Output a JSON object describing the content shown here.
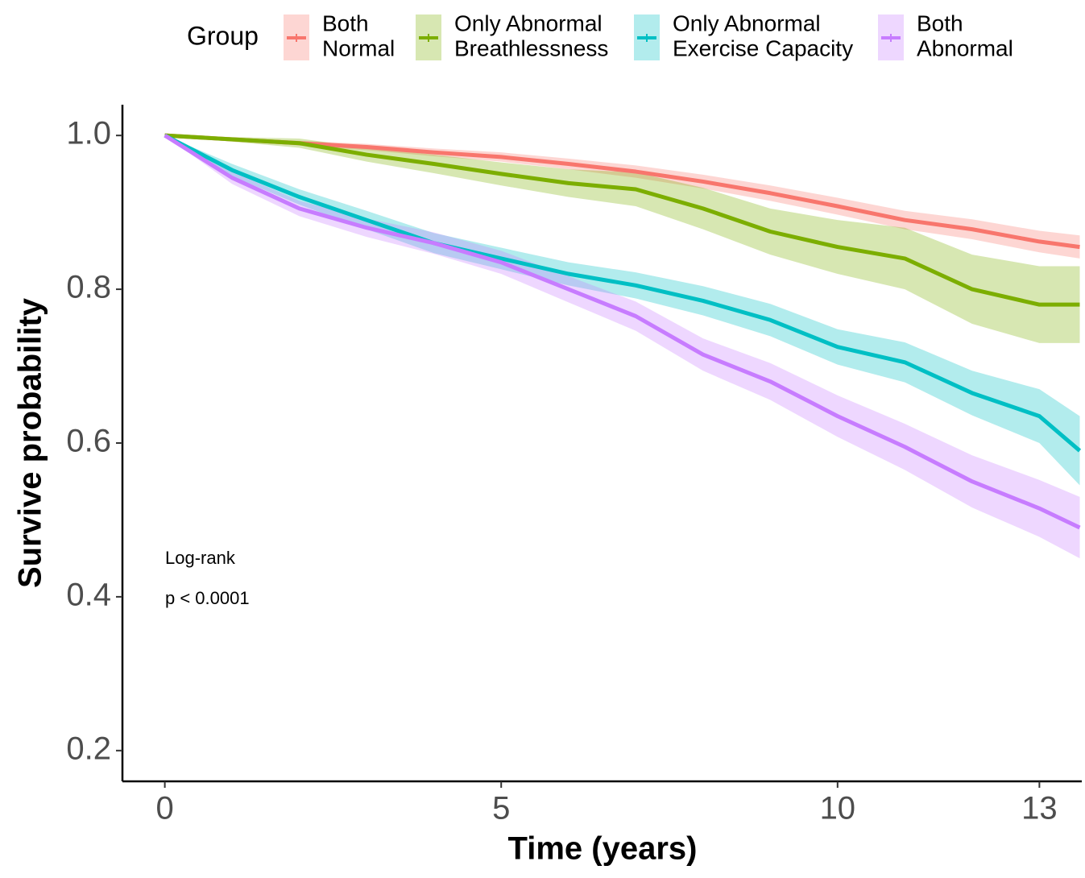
{
  "chart_data": {
    "type": "line",
    "legend_title": "Group",
    "x_label": "Time (years)",
    "y_label": "Survive probability",
    "annotations": [
      "Log-rank",
      "p < 0.0001"
    ],
    "x": [
      0,
      1,
      2,
      3,
      4,
      5,
      6,
      7,
      8,
      9,
      10,
      11,
      12,
      13,
      13.6
    ],
    "xlim": [
      -0.63,
      13.63
    ],
    "ylim": [
      0.16,
      1.04
    ],
    "xticks": [
      0,
      5,
      10,
      13
    ],
    "yticks": [
      0.2,
      0.4,
      0.6,
      0.8,
      {
        "value": 1,
        "label": "1.0"
      }
    ],
    "series": [
      {
        "name": "Both\nNormal",
        "color": "#F8766D",
        "values": [
          1.0,
          0.995,
          0.99,
          0.985,
          0.978,
          0.972,
          0.963,
          0.953,
          0.94,
          0.925,
          0.908,
          0.89,
          0.878,
          0.862,
          0.855
        ],
        "lower": [
          1.0,
          0.993,
          0.987,
          0.981,
          0.973,
          0.966,
          0.956,
          0.945,
          0.931,
          0.915,
          0.897,
          0.878,
          0.865,
          0.848,
          0.84
        ],
        "upper": [
          1.0,
          0.997,
          0.993,
          0.989,
          0.983,
          0.978,
          0.97,
          0.961,
          0.949,
          0.935,
          0.919,
          0.902,
          0.891,
          0.876,
          0.87
        ]
      },
      {
        "name": "Only Abnormal\nBreathlessness",
        "color": "#7CAE00",
        "values": [
          1.0,
          0.995,
          0.99,
          0.975,
          0.963,
          0.95,
          0.938,
          0.93,
          0.905,
          0.875,
          0.855,
          0.84,
          0.8,
          0.78,
          0.78
        ],
        "lower": [
          1.0,
          0.992,
          0.984,
          0.966,
          0.951,
          0.935,
          0.92,
          0.908,
          0.878,
          0.845,
          0.82,
          0.8,
          0.755,
          0.73,
          0.73
        ],
        "upper": [
          1.0,
          0.998,
          0.996,
          0.984,
          0.975,
          0.965,
          0.956,
          0.952,
          0.932,
          0.905,
          0.89,
          0.88,
          0.845,
          0.83,
          0.83
        ]
      },
      {
        "name": "Only Abnormal\nExercise Capacity",
        "color": "#00BFC4",
        "values": [
          1.0,
          0.955,
          0.92,
          0.89,
          0.86,
          0.84,
          0.82,
          0.805,
          0.785,
          0.76,
          0.725,
          0.705,
          0.665,
          0.635,
          0.59
        ],
        "lower": [
          1.0,
          0.947,
          0.91,
          0.878,
          0.847,
          0.826,
          0.805,
          0.788,
          0.766,
          0.739,
          0.702,
          0.679,
          0.636,
          0.6,
          0.545
        ],
        "upper": [
          1.0,
          0.963,
          0.93,
          0.902,
          0.873,
          0.854,
          0.835,
          0.822,
          0.804,
          0.781,
          0.748,
          0.731,
          0.694,
          0.67,
          0.635
        ]
      },
      {
        "name": "Both\nAbnormal",
        "color": "#C77CFF",
        "values": [
          1.0,
          0.945,
          0.905,
          0.88,
          0.86,
          0.835,
          0.8,
          0.765,
          0.715,
          0.68,
          0.635,
          0.595,
          0.55,
          0.515,
          0.49
        ],
        "lower": [
          1.0,
          0.937,
          0.895,
          0.868,
          0.846,
          0.82,
          0.783,
          0.746,
          0.694,
          0.656,
          0.608,
          0.565,
          0.516,
          0.478,
          0.45
        ],
        "upper": [
          1.0,
          0.953,
          0.915,
          0.892,
          0.874,
          0.85,
          0.817,
          0.784,
          0.736,
          0.704,
          0.662,
          0.625,
          0.584,
          0.552,
          0.53
        ]
      }
    ]
  }
}
